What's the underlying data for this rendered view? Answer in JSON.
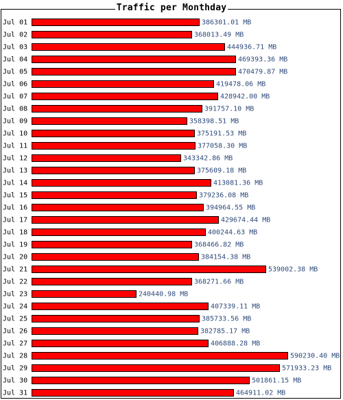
{
  "chart_data": {
    "type": "bar",
    "orientation": "horizontal",
    "title": "Traffic per Monthday",
    "unit": "MB",
    "bar_color": "#ff0000",
    "bar_border_color": "#000000",
    "label_color": "#2e4a7a",
    "categories": [
      "Jul 01",
      "Jul 02",
      "Jul 03",
      "Jul 04",
      "Jul 05",
      "Jul 06",
      "Jul 07",
      "Jul 08",
      "Jul 09",
      "Jul 10",
      "Jul 11",
      "Jul 12",
      "Jul 13",
      "Jul 14",
      "Jul 15",
      "Jul 16",
      "Jul 17",
      "Jul 18",
      "Jul 19",
      "Jul 20",
      "Jul 21",
      "Jul 22",
      "Jul 23",
      "Jul 24",
      "Jul 25",
      "Jul 26",
      "Jul 27",
      "Jul 28",
      "Jul 29",
      "Jul 30",
      "Jul 31"
    ],
    "values": [
      386301.01,
      368013.49,
      444936.71,
      469393.36,
      470479.87,
      419478.06,
      428942.0,
      391757.1,
      358398.51,
      375191.53,
      377058.3,
      343342.86,
      375609.18,
      413081.36,
      379236.08,
      394964.55,
      429674.44,
      400244.63,
      368466.82,
      384154.38,
      539002.38,
      368271.66,
      240440.98,
      407339.11,
      385733.56,
      382785.17,
      406888.28,
      590230.4,
      571933.23,
      501861.15,
      464911.02
    ],
    "value_labels": [
      "386301.01 MB",
      "368013.49 MB",
      "444936.71 MB",
      "469393.36 MB",
      "470479.87 MB",
      "419478.06 MB",
      "428942.00 MB",
      "391757.10 MB",
      "358398.51 MB",
      "375191.53 MB",
      "377058.30 MB",
      "343342.86 MB",
      "375609.18 MB",
      "413081.36 MB",
      "379236.08 MB",
      "394964.55 MB",
      "429674.44 MB",
      "400244.63 MB",
      "368466.82 MB",
      "384154.38 MB",
      "539002.38 MB",
      "368271.66 MB",
      "240440.98 MB",
      "407339.11 MB",
      "385733.56 MB",
      "382785.17 MB",
      "406888.28 MB",
      "590230.40 MB",
      "571933.23 MB",
      "501861.15 MB",
      "464911.02 MB"
    ]
  }
}
